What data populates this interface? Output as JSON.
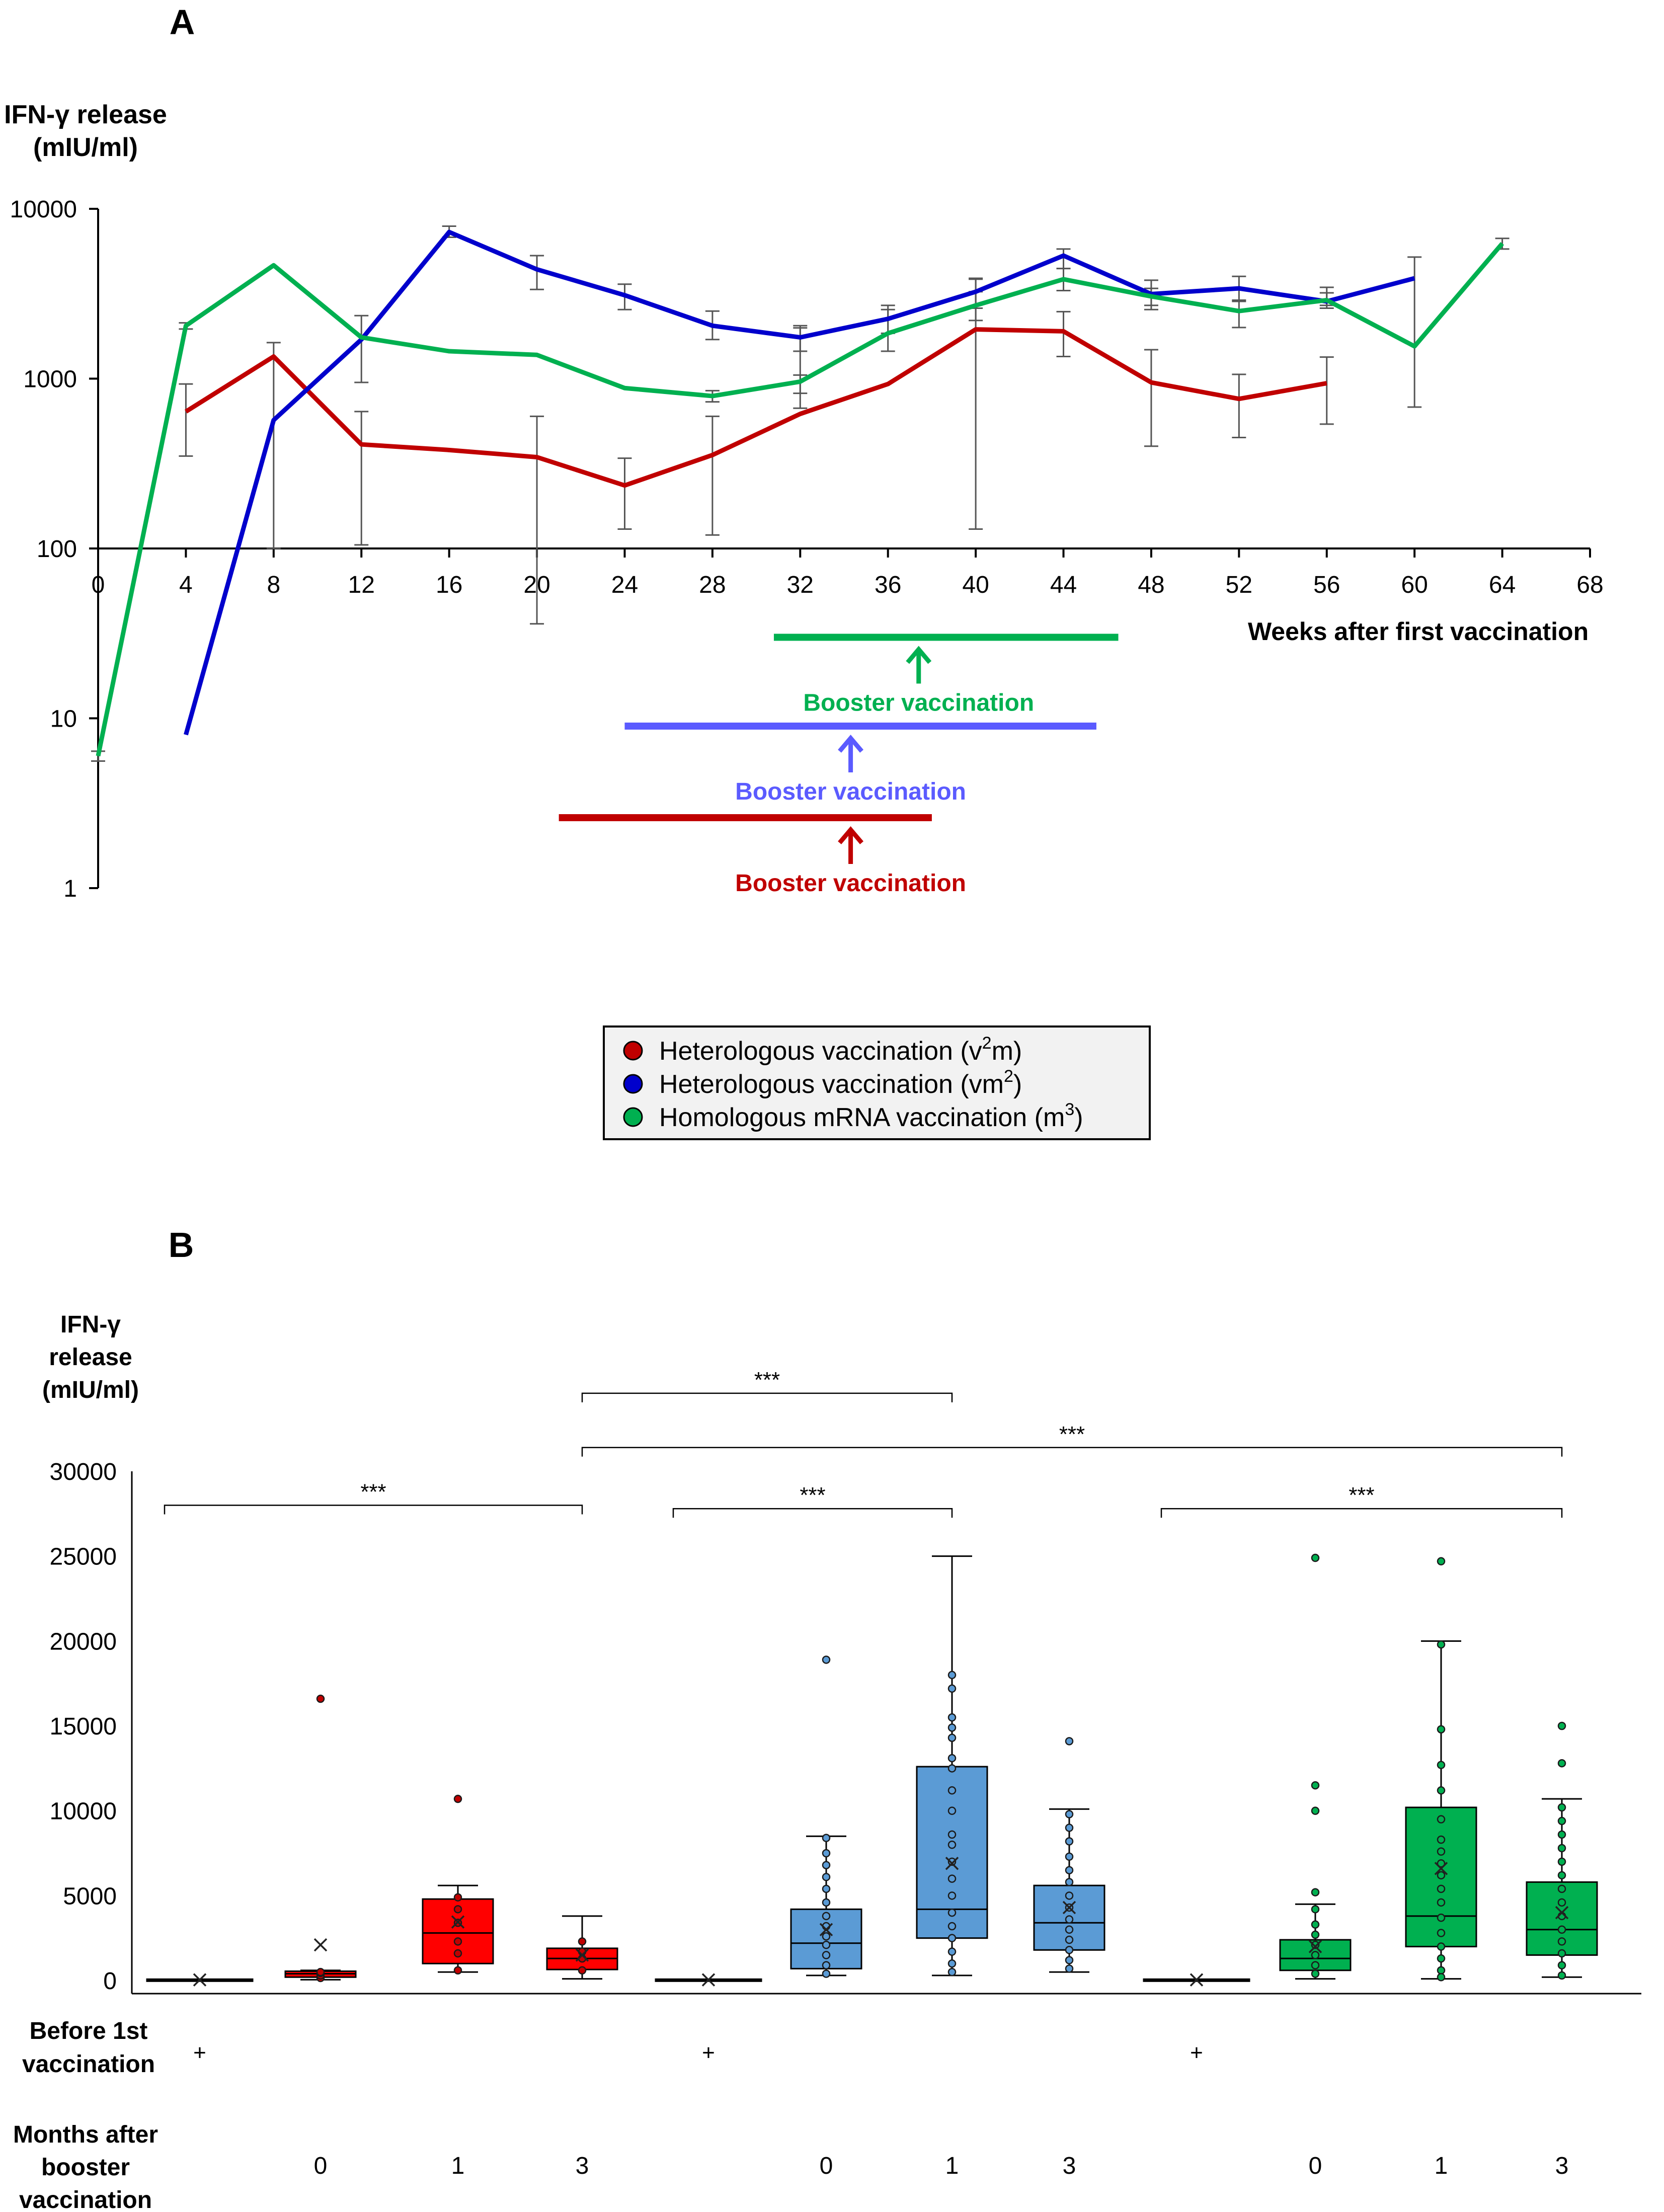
{
  "chart_data": [
    {
      "panel": "A",
      "type": "line",
      "ylabel_line1": "IFN-γ release",
      "ylabel_line2": "(mIU/ml)",
      "xlabel": "Weeks after first vaccination",
      "yscale": "log",
      "ylim": [
        1,
        10000
      ],
      "xlim": [
        0,
        68
      ],
      "yticks": [
        1,
        10,
        100,
        1000,
        10000
      ],
      "ytick_labels": [
        "1",
        "10",
        "100",
        "1000",
        "10000"
      ],
      "xticks": [
        0,
        4,
        8,
        12,
        16,
        20,
        24,
        28,
        32,
        36,
        40,
        44,
        48,
        52,
        56,
        60,
        64,
        68
      ],
      "xtick_labels": [
        "0",
        "4",
        "8",
        "12",
        "16",
        "20",
        "24",
        "28",
        "32",
        "36",
        "40",
        "44",
        "48",
        "52",
        "56",
        "60",
        "64",
        "68"
      ],
      "series": [
        {
          "name": "Heterologous vaccination (v²m)",
          "legend_base": "Heterologous vaccination (v",
          "legend_sup": "2",
          "legend_tail": "m)",
          "color": "#c00000",
          "x": [
            4,
            8,
            12,
            16,
            20,
            24,
            28,
            32,
            36,
            40,
            44,
            48,
            52,
            56
          ],
          "y": [
            640,
            1350,
            410,
            380,
            345,
            235,
            355,
            620,
            930,
            1950,
            1900,
            950,
            760,
            940
          ],
          "err_low": [
            350,
            100,
            105,
            null,
            36,
            130,
            120,
            670,
            null,
            130,
            1350,
            400,
            450,
            540
          ],
          "err_high": [
            930,
            1630,
            640,
            null,
            600,
            340,
            600,
            1990,
            null,
            3900,
            2480,
            1480,
            1060,
            1340
          ]
        },
        {
          "name": "Heterologous vaccination (vm²)",
          "legend_base": "Heterologous vaccination (vm",
          "legend_sup": "2",
          "legend_tail": ")",
          "color": "#0000cc",
          "x": [
            4,
            8,
            12,
            16,
            20,
            24,
            28,
            32,
            36,
            40,
            44,
            48,
            52,
            56,
            60
          ],
          "y": [
            8,
            570,
            1700,
            7300,
            4400,
            3100,
            2050,
            1750,
            2250,
            3250,
            5300,
            3150,
            3400,
            2850,
            3900
          ],
          "err_low": [
            null,
            null,
            null,
            6800,
            3350,
            2550,
            1700,
            1450,
            1850,
            2600,
            4450,
            2550,
            2850,
            2600,
            null
          ],
          "err_high": [
            null,
            null,
            null,
            7900,
            5300,
            3600,
            2500,
            2050,
            2700,
            3850,
            5800,
            3800,
            4000,
            3450,
            null
          ]
        },
        {
          "name": "Homologous mRNA vaccination (m³)",
          "legend_base": "Homologous mRNA vaccination (m",
          "legend_sup": "3",
          "legend_tail": ")",
          "color": "#00b050",
          "x": [
            0,
            4,
            8,
            12,
            16,
            20,
            24,
            28,
            32,
            36,
            40,
            44,
            48,
            52,
            56,
            60,
            64
          ],
          "y": [
            6,
            2050,
            4650,
            1750,
            1450,
            1380,
            880,
            790,
            960,
            1850,
            2700,
            3850,
            3050,
            2500,
            2900,
            1550,
            6250
          ],
          "err_low": [
            5.6,
            1960,
            null,
            950,
            null,
            null,
            null,
            730,
            820,
            1450,
            2200,
            3300,
            2700,
            2000,
            2700,
            680,
            5800
          ],
          "err_high": [
            6.4,
            2130,
            null,
            2350,
            null,
            null,
            null,
            850,
            1050,
            2550,
            3250,
            4450,
            3400,
            2900,
            3200,
            5200,
            6700
          ]
        }
      ],
      "booster_annotations": [
        {
          "label": "Booster vaccination",
          "color": "#00b050",
          "x_start": 30.8,
          "x_end": 46.5,
          "arrow_x": 37.4,
          "level": 30
        },
        {
          "label": "Booster vaccination",
          "color": "#5b5bff",
          "x_start": 24.0,
          "x_end": 45.5,
          "arrow_x": 34.3,
          "level": 9
        },
        {
          "label": "Booster vaccination",
          "color": "#c00000",
          "x_start": 21.0,
          "x_end": 38.0,
          "arrow_x": 34.3,
          "level": 2.6
        }
      ]
    },
    {
      "panel": "B",
      "type": "box",
      "ylabel_line1": "IFN-γ",
      "ylabel_line2": "release",
      "ylabel_line3": "(mIU/ml)",
      "ylim": [
        0,
        30000
      ],
      "yticks": [
        0,
        5000,
        10000,
        15000,
        20000,
        25000,
        30000
      ],
      "ytick_labels": [
        "0",
        "5000",
        "10000",
        "15000",
        "20000",
        "25000",
        "30000"
      ],
      "row_label_before": [
        "Before 1st",
        "vaccination"
      ],
      "row_label_months": [
        "Months after",
        "booster",
        "vaccination"
      ],
      "before_marker": "+",
      "groups": [
        {
          "name": "Heterologous vaccination (v²m)",
          "fill": "#ff0000",
          "marker": "#c00000"
        },
        {
          "name": "Heterologous vaccination (vm²)",
          "fill": "#5b9bd5",
          "marker": "#5b9bd5"
        },
        {
          "name": "Homologous mRNA vaccination (m³)",
          "fill": "#00b050",
          "marker": "#00b050"
        }
      ],
      "boxes": [
        {
          "group": 0,
          "category": "before",
          "label": "",
          "q1": 0,
          "median": 30,
          "q3": 80,
          "whisker_low": 0,
          "whisker_high": 80,
          "mean": 40,
          "points": []
        },
        {
          "group": 0,
          "category": "0",
          "label": "0",
          "q1": 200,
          "median": 400,
          "q3": 550,
          "whisker_low": 50,
          "whisker_high": 600,
          "mean": 2100,
          "points": [
            16600,
            150,
            300,
            450,
            500
          ]
        },
        {
          "group": 0,
          "category": "1",
          "label": "1",
          "q1": 1000,
          "median": 2800,
          "q3": 4800,
          "whisker_low": 500,
          "whisker_high": 5600,
          "mean": 3450,
          "points": [
            10700,
            600,
            1600,
            2300,
            3400,
            4200,
            4900
          ]
        },
        {
          "group": 0,
          "category": "3",
          "label": "3",
          "q1": 650,
          "median": 1300,
          "q3": 1900,
          "whisker_low": 100,
          "whisker_high": 3800,
          "mean": 1500,
          "points": [
            2300,
            1700,
            1300,
            600
          ]
        },
        {
          "group": 1,
          "category": "before",
          "label": "",
          "q1": 0,
          "median": 30,
          "q3": 80,
          "whisker_low": 0,
          "whisker_high": 80,
          "mean": 40,
          "points": []
        },
        {
          "group": 1,
          "category": "0",
          "label": "0",
          "q1": 700,
          "median": 2200,
          "q3": 4200,
          "whisker_low": 300,
          "whisker_high": 8500,
          "mean": 3000,
          "points": [
            18900,
            8400,
            7500,
            6800,
            6100,
            5400,
            4600,
            3800,
            3200,
            2600,
            2100,
            1500,
            900,
            400
          ]
        },
        {
          "group": 1,
          "category": "1",
          "label": "1",
          "q1": 2500,
          "median": 4200,
          "q3": 12600,
          "whisker_low": 300,
          "whisker_high": 25000,
          "mean": 6900,
          "points": [
            18000,
            17200,
            15500,
            14900,
            14300,
            13100,
            12500,
            11200,
            10000,
            8600,
            8000,
            7000,
            6000,
            5000,
            4000,
            3200,
            2500,
            1700,
            1000,
            500
          ]
        },
        {
          "group": 1,
          "category": "3",
          "label": "3",
          "q1": 1800,
          "median": 3400,
          "q3": 5600,
          "whisker_low": 500,
          "whisker_high": 10100,
          "mean": 4300,
          "points": [
            14100,
            9800,
            9000,
            8200,
            7300,
            6500,
            5800,
            5000,
            4300,
            3600,
            3000,
            2400,
            1800,
            1200,
            700
          ]
        },
        {
          "group": 2,
          "category": "before",
          "label": "",
          "q1": 0,
          "median": 30,
          "q3": 80,
          "whisker_low": 0,
          "whisker_high": 80,
          "mean": 40,
          "points": []
        },
        {
          "group": 2,
          "category": "0",
          "label": "0",
          "q1": 600,
          "median": 1300,
          "q3": 2400,
          "whisker_low": 100,
          "whisker_high": 4500,
          "mean": 2000,
          "points": [
            24900,
            11500,
            10000,
            5200,
            4200,
            3300,
            2700,
            2100,
            1500,
            900,
            400
          ]
        },
        {
          "group": 2,
          "category": "1",
          "label": "1",
          "q1": 2000,
          "median": 3800,
          "q3": 10200,
          "whisker_low": 100,
          "whisker_high": 20000,
          "mean": 6600,
          "points": [
            24700,
            19800,
            14800,
            12700,
            11200,
            9500,
            8300,
            7600,
            6900,
            6200,
            5400,
            4600,
            3700,
            2800,
            2000,
            1300,
            600,
            200
          ]
        },
        {
          "group": 2,
          "category": "3",
          "label": "3",
          "q1": 1500,
          "median": 3000,
          "q3": 5800,
          "whisker_low": 200,
          "whisker_high": 10700,
          "mean": 4000,
          "points": [
            15000,
            12800,
            10200,
            9400,
            8600,
            7800,
            7000,
            6200,
            5400,
            4600,
            3800,
            3000,
            2300,
            1600,
            900,
            300
          ]
        }
      ],
      "significance": [
        {
          "label": "***",
          "from_box": 0,
          "to_box": 3,
          "level": 28000
        },
        {
          "label": "***",
          "from_box": 3,
          "to_box": 6,
          "level": 34600
        },
        {
          "label": "***",
          "from_box": 3,
          "to_box": 11,
          "level": 31400
        },
        {
          "label": "***",
          "from_box": 4,
          "to_box": 6,
          "level": 27800
        },
        {
          "label": "***",
          "from_box": 8,
          "to_box": 11,
          "level": 27800
        }
      ]
    }
  ],
  "panel_labels": {
    "a": "A",
    "b": "B"
  },
  "legend": {
    "entries": [
      {
        "base": "Heterologous vaccination (v",
        "sup": "2",
        "tail": "m)",
        "color": "#c00000"
      },
      {
        "base": "Heterologous vaccination (vm",
        "sup": "2",
        "tail": ")",
        "color": "#0000cc"
      },
      {
        "base": "Homologous mRNA vaccination (m",
        "sup": "3",
        "tail": ")",
        "color": "#00b050"
      }
    ]
  }
}
